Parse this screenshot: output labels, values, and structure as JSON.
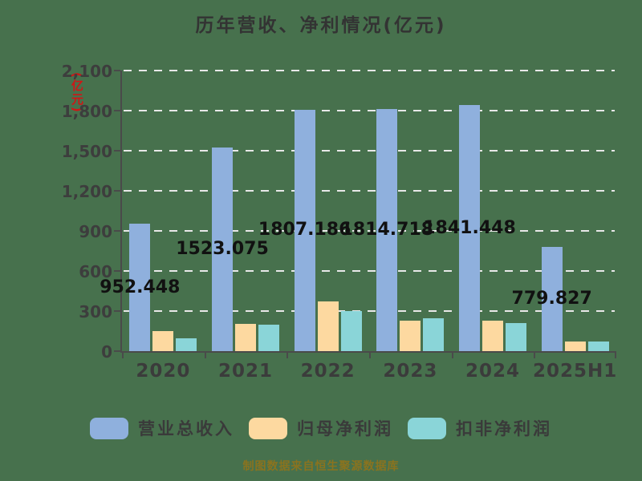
{
  "chart": {
    "title": "历年营收、净利情况(亿元)",
    "y_axis_unit_label": "(亿元)",
    "footer": "制图数据来自恒生聚源数据库"
  },
  "colors": {
    "background": "#47714d",
    "axis": "#4a4a4a",
    "gridline": "#e8e8e8",
    "title_text": "#333333",
    "data_label_text": "#111111",
    "y_unit_text": "#d01616",
    "footer_text": "#8a731f"
  },
  "chart_data": {
    "type": "bar",
    "title": "历年营收、净利情况(亿元)",
    "categories": [
      "2020",
      "2021",
      "2022",
      "2023",
      "2024",
      "2025H1"
    ],
    "series": [
      {
        "name": "营业总收入",
        "color": "#8fb0dd",
        "values": [
          952.448,
          1523.075,
          1807.186,
          1814.718,
          1841.448,
          779.827
        ],
        "data_labels": [
          "952.448",
          "1523.075",
          "1807.186",
          "1814.718",
          "1841.448",
          "779.827"
        ]
      },
      {
        "name": "归母净利润",
        "color": "#fdd9a0",
        "values": [
          150,
          205,
          375,
          230,
          230,
          75
        ]
      },
      {
        "name": "扣非净利润",
        "color": "#8ad5d8",
        "values": [
          95,
          200,
          300,
          245,
          210,
          70
        ]
      }
    ],
    "ylim": [
      0,
      2100
    ],
    "y_tick_step": 300,
    "y_tick_labels": [
      "0",
      "300",
      "600",
      "900",
      "1,200",
      "1,500",
      "1,800",
      "2,100"
    ],
    "xlabel": "",
    "ylabel": "(亿元)",
    "grid": "horizontal-dashed",
    "legend_position": "bottom"
  }
}
